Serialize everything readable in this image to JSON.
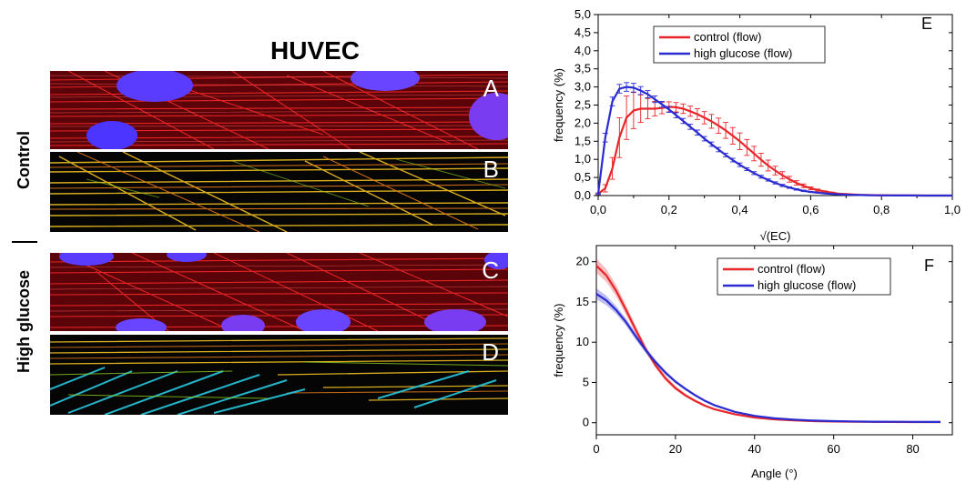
{
  "left": {
    "title": "HUVEC",
    "row_labels": [
      "Control",
      "High glucose"
    ],
    "panels": [
      "A",
      "B",
      "C",
      "D"
    ]
  },
  "chart_data": [
    {
      "type": "line",
      "panel_label": "E",
      "xlabel": "√(EC)",
      "ylabel": "frequency (%)",
      "xlim": [
        0.0,
        1.0
      ],
      "ylim": [
        0.0,
        5.0
      ],
      "xticks": [
        "0,0",
        "0,2",
        "0,4",
        "0,6",
        "0,8",
        "1,0"
      ],
      "yticks": [
        "0,0",
        "0,5",
        "1,0",
        "1,5",
        "2,0",
        "2,5",
        "3,0",
        "3,5",
        "4,0",
        "4,5",
        "5,0"
      ],
      "legend": "top-center",
      "series": [
        {
          "name": "control (flow)",
          "color": "#e8262a",
          "x": [
            0.0,
            0.02,
            0.04,
            0.06,
            0.08,
            0.1,
            0.12,
            0.14,
            0.16,
            0.18,
            0.2,
            0.22,
            0.24,
            0.26,
            0.28,
            0.3,
            0.32,
            0.34,
            0.36,
            0.38,
            0.4,
            0.42,
            0.44,
            0.46,
            0.48,
            0.5,
            0.52,
            0.54,
            0.56,
            0.58,
            0.6,
            0.62,
            0.64,
            0.66,
            0.68,
            0.7,
            0.72,
            0.74,
            0.76,
            0.78,
            0.8,
            0.84,
            0.88,
            0.92,
            0.96,
            1.0
          ],
          "values": [
            0.05,
            0.2,
            0.75,
            1.6,
            2.15,
            2.35,
            2.4,
            2.4,
            2.4,
            2.42,
            2.45,
            2.44,
            2.4,
            2.33,
            2.25,
            2.15,
            2.05,
            1.93,
            1.8,
            1.65,
            1.5,
            1.33,
            1.16,
            0.99,
            0.83,
            0.69,
            0.56,
            0.45,
            0.35,
            0.27,
            0.2,
            0.15,
            0.11,
            0.08,
            0.05,
            0.04,
            0.03,
            0.02,
            0.015,
            0.01,
            0.01,
            0.005,
            0.003,
            0.001,
            0.0,
            0.0
          ],
          "error": [
            0.02,
            0.1,
            0.3,
            0.55,
            0.6,
            0.5,
            0.38,
            0.28,
            0.2,
            0.16,
            0.14,
            0.13,
            0.13,
            0.14,
            0.15,
            0.17,
            0.19,
            0.21,
            0.22,
            0.23,
            0.23,
            0.22,
            0.2,
            0.18,
            0.15,
            0.12,
            0.1,
            0.08,
            0.06,
            0.05,
            0.04,
            0.03,
            0.02,
            0.015,
            0.01,
            0.01,
            0.005,
            0.005,
            0.003,
            0.002,
            0.002,
            0.001,
            0.0,
            0.0,
            0.0,
            0.0
          ]
        },
        {
          "name": "high glucose (flow)",
          "color": "#2a2bd0",
          "x": [
            0.0,
            0.02,
            0.04,
            0.06,
            0.08,
            0.1,
            0.12,
            0.14,
            0.16,
            0.18,
            0.2,
            0.22,
            0.24,
            0.26,
            0.28,
            0.3,
            0.32,
            0.34,
            0.36,
            0.38,
            0.4,
            0.42,
            0.44,
            0.46,
            0.48,
            0.5,
            0.52,
            0.54,
            0.56,
            0.58,
            0.6,
            0.62,
            0.64,
            0.66,
            0.68,
            0.7,
            0.72,
            0.74,
            0.76,
            0.78,
            0.8,
            0.84,
            0.88,
            0.92,
            0.96,
            1.0
          ],
          "values": [
            0.05,
            1.6,
            2.6,
            2.95,
            3.0,
            2.98,
            2.9,
            2.8,
            2.66,
            2.52,
            2.38,
            2.22,
            2.06,
            1.9,
            1.74,
            1.57,
            1.42,
            1.27,
            1.12,
            0.98,
            0.85,
            0.73,
            0.62,
            0.52,
            0.43,
            0.35,
            0.28,
            0.22,
            0.17,
            0.13,
            0.1,
            0.08,
            0.06,
            0.045,
            0.035,
            0.025,
            0.02,
            0.015,
            0.01,
            0.008,
            0.005,
            0.003,
            0.002,
            0.001,
            0.0,
            0.0
          ],
          "error": [
            0.02,
            0.12,
            0.12,
            0.12,
            0.12,
            0.12,
            0.11,
            0.1,
            0.09,
            0.08,
            0.08,
            0.07,
            0.07,
            0.07,
            0.07,
            0.06,
            0.06,
            0.06,
            0.05,
            0.05,
            0.05,
            0.04,
            0.04,
            0.04,
            0.03,
            0.03,
            0.03,
            0.02,
            0.02,
            0.02,
            0.01,
            0.01,
            0.01,
            0.01,
            0.005,
            0.005,
            0.005,
            0.003,
            0.003,
            0.002,
            0.002,
            0.001,
            0.0,
            0.0,
            0.0,
            0.0
          ]
        }
      ]
    },
    {
      "type": "line",
      "panel_label": "F",
      "xlabel": "Angle (°)",
      "ylabel": "frequency (%)",
      "xlim": [
        0,
        90
      ],
      "ylim": [
        -1.5,
        22
      ],
      "xticks": [
        "0",
        "20",
        "40",
        "60",
        "80"
      ],
      "yticks": [
        "0",
        "5",
        "10",
        "15",
        "20"
      ],
      "legend": "top-right",
      "series": [
        {
          "name": "control (flow)",
          "color": "#e8262a",
          "x": [
            0,
            2.5,
            5,
            7.5,
            10,
            12.5,
            15,
            17.5,
            20,
            22.5,
            25,
            27.5,
            30,
            35,
            40,
            45,
            50,
            55,
            60,
            65,
            70,
            75,
            80,
            85,
            87
          ],
          "values": [
            19.5,
            18.3,
            16.4,
            14.0,
            11.5,
            9.1,
            7.1,
            5.5,
            4.3,
            3.4,
            2.7,
            2.1,
            1.65,
            1.05,
            0.65,
            0.42,
            0.28,
            0.2,
            0.15,
            0.12,
            0.1,
            0.09,
            0.08,
            0.08,
            0.08
          ],
          "error": [
            0.9,
            0.8,
            0.7,
            0.6,
            0.5,
            0.4,
            0.35,
            0.3,
            0.25,
            0.2,
            0.15,
            0.12,
            0.1,
            0.08,
            0.06,
            0.05,
            0.04,
            0.03,
            0.03,
            0.02,
            0.02,
            0.02,
            0.02,
            0.02,
            0.02
          ]
        },
        {
          "name": "high glucose (flow)",
          "color": "#2a2bd0",
          "x": [
            0,
            2.5,
            5,
            7.5,
            10,
            12.5,
            15,
            17.5,
            20,
            22.5,
            25,
            27.5,
            30,
            35,
            40,
            45,
            50,
            55,
            60,
            65,
            70,
            75,
            80,
            85,
            87
          ],
          "values": [
            16.0,
            15.2,
            14.0,
            12.5,
            10.7,
            9.0,
            7.5,
            6.2,
            5.1,
            4.2,
            3.4,
            2.7,
            2.15,
            1.35,
            0.85,
            0.55,
            0.37,
            0.26,
            0.2,
            0.16,
            0.13,
            0.11,
            0.1,
            0.09,
            0.09
          ],
          "error": [
            0.7,
            0.6,
            0.5,
            0.45,
            0.4,
            0.35,
            0.3,
            0.25,
            0.2,
            0.18,
            0.15,
            0.12,
            0.1,
            0.08,
            0.06,
            0.05,
            0.04,
            0.03,
            0.03,
            0.02,
            0.02,
            0.02,
            0.02,
            0.02,
            0.02
          ]
        }
      ]
    }
  ]
}
